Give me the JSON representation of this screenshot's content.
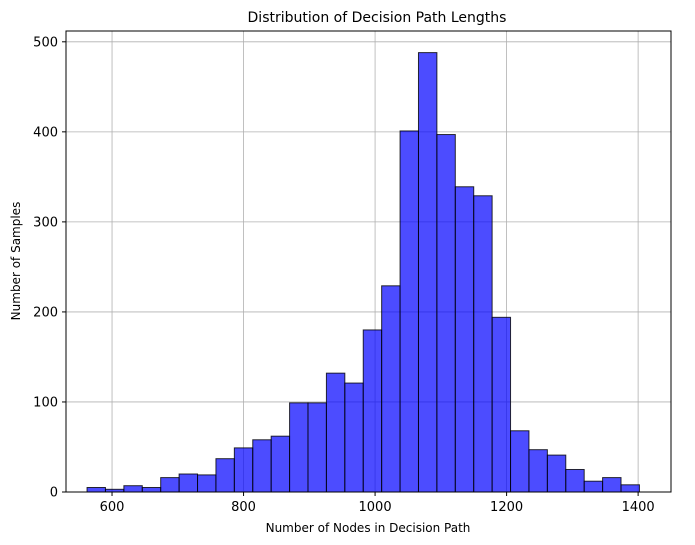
{
  "chart_data": {
    "type": "bar",
    "title": "Distribution of Decision Path Lengths",
    "xlabel": "Number of Nodes in Decision Path",
    "ylabel": "Number of Samples",
    "xlim": [
      530,
      1450
    ],
    "ylim": [
      0,
      512
    ],
    "xticks": [
      600,
      800,
      1000,
      1200,
      1400
    ],
    "yticks": [
      0,
      100,
      200,
      300,
      400,
      500
    ],
    "grid": true,
    "bar_color": "#0000ff",
    "bar_opacity": 0.7,
    "edge_color": "#000000",
    "bins": [
      {
        "x0": 562,
        "x1": 590,
        "count": 5
      },
      {
        "x0": 590,
        "x1": 618,
        "count": 3
      },
      {
        "x0": 618,
        "x1": 646,
        "count": 7
      },
      {
        "x0": 646,
        "x1": 674,
        "count": 5
      },
      {
        "x0": 674,
        "x1": 702,
        "count": 16
      },
      {
        "x0": 702,
        "x1": 730,
        "count": 20
      },
      {
        "x0": 730,
        "x1": 758,
        "count": 19
      },
      {
        "x0": 758,
        "x1": 786,
        "count": 37
      },
      {
        "x0": 786,
        "x1": 814,
        "count": 49
      },
      {
        "x0": 814,
        "x1": 842,
        "count": 58
      },
      {
        "x0": 842,
        "x1": 870,
        "count": 62
      },
      {
        "x0": 870,
        "x1": 898,
        "count": 99
      },
      {
        "x0": 898,
        "x1": 926,
        "count": 99
      },
      {
        "x0": 926,
        "x1": 954,
        "count": 132
      },
      {
        "x0": 954,
        "x1": 982,
        "count": 121
      },
      {
        "x0": 982,
        "x1": 1010,
        "count": 180
      },
      {
        "x0": 1010,
        "x1": 1038,
        "count": 229
      },
      {
        "x0": 1038,
        "x1": 1066,
        "count": 401
      },
      {
        "x0": 1066,
        "x1": 1094,
        "count": 488
      },
      {
        "x0": 1094,
        "x1": 1122,
        "count": 397
      },
      {
        "x0": 1122,
        "x1": 1150,
        "count": 339
      },
      {
        "x0": 1150,
        "x1": 1178,
        "count": 329
      },
      {
        "x0": 1178,
        "x1": 1206,
        "count": 194
      },
      {
        "x0": 1206,
        "x1": 1234,
        "count": 68
      },
      {
        "x0": 1234,
        "x1": 1262,
        "count": 47
      },
      {
        "x0": 1262,
        "x1": 1290,
        "count": 41
      },
      {
        "x0": 1290,
        "x1": 1318,
        "count": 25
      },
      {
        "x0": 1318,
        "x1": 1346,
        "count": 12
      },
      {
        "x0": 1346,
        "x1": 1374,
        "count": 16
      },
      {
        "x0": 1374,
        "x1": 1402,
        "count": 8
      }
    ]
  }
}
